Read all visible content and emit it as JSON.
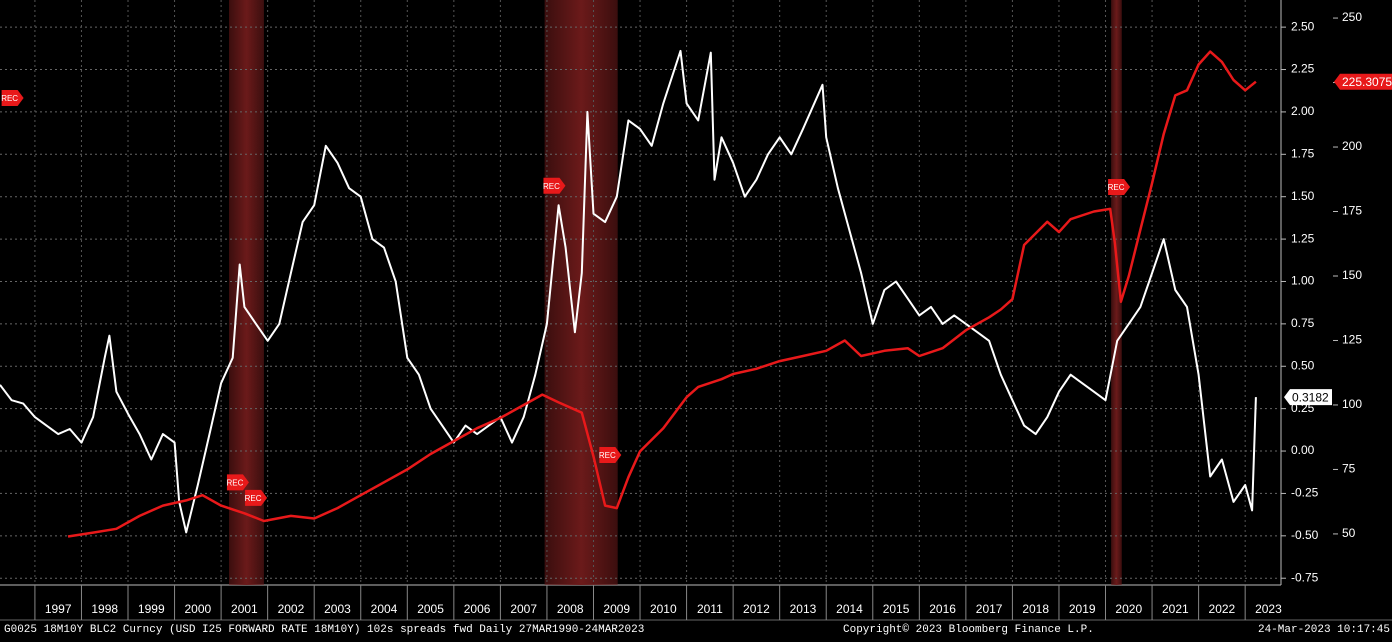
{
  "chart_data": {
    "type": "line",
    "xlim": [
      1996.25,
      2023.77
    ],
    "xticks": [
      1997,
      1998,
      1999,
      2000,
      2001,
      2002,
      2003,
      2004,
      2005,
      2006,
      2007,
      2008,
      2009,
      2010,
      2011,
      2012,
      2013,
      2014,
      2015,
      2016,
      2017,
      2018,
      2019,
      2020,
      2021,
      2022,
      2023
    ],
    "ylim": [
      -0.79,
      2.66
    ],
    "yticks": [
      {
        "value": 2.5,
        "label": "2.50"
      },
      2.25,
      {
        "value": 2,
        "label": "2.00"
      },
      1.75,
      {
        "value": 1.5,
        "label": "1.50"
      },
      1.25,
      {
        "value": 1,
        "label": "1.00"
      },
      0.75,
      {
        "value": 0.5,
        "label": "0.50"
      },
      0.25,
      {
        "value": 0,
        "label": "0.00"
      },
      -0.25,
      {
        "value": -0.5,
        "label": "-0.50"
      },
      -0.75
    ],
    "y2lim": [
      30.2,
      257
    ],
    "y2ticks": [
      50,
      75,
      100,
      125,
      150,
      175,
      200,
      225,
      250
    ],
    "grid": true,
    "recession_color": "#6b1a1a",
    "recessions": [
      [
        2001.17,
        2001.92
      ],
      [
        2007.95,
        2009.52
      ],
      [
        2020.12,
        2020.35
      ]
    ],
    "annotations": [
      {
        "text": "REC",
        "x": 1996.5,
        "y": 219
      },
      {
        "text": "REC",
        "x": 2001.34,
        "y": 70
      },
      {
        "text": "REC",
        "x": 2001.73,
        "y": 64
      },
      {
        "text": "REC",
        "x": 2008.14,
        "y": 185
      },
      {
        "text": "REC",
        "x": 2009.34,
        "y": 80.6
      },
      {
        "text": "REC",
        "x": 2020.27,
        "y": 184.5
      }
    ],
    "series": [
      {
        "color": "#ffffff",
        "axis": "y",
        "x": [
          1996.25,
          1996.5,
          1996.75,
          1997,
          1997.25,
          1997.5,
          1997.75,
          1998,
          1998.25,
          1998.5,
          1998.6,
          1998.75,
          1999,
          1999.25,
          1999.5,
          1999.75,
          2000,
          2000.1,
          2000.25,
          2000.5,
          2000.75,
          2001,
          2001.25,
          2001.4,
          2001.5,
          2001.75,
          2002,
          2002.25,
          2002.5,
          2002.75,
          2003,
          2003.25,
          2003.5,
          2003.75,
          2004,
          2004.25,
          2004.5,
          2004.75,
          2005,
          2005.25,
          2005.5,
          2005.75,
          2006,
          2006.25,
          2006.5,
          2006.75,
          2007,
          2007.25,
          2007.5,
          2007.75,
          2008,
          2008.25,
          2008.4,
          2008.5,
          2008.6,
          2008.75,
          2008.87,
          2009,
          2009.25,
          2009.5,
          2009.75,
          2010,
          2010.25,
          2010.5,
          2010.87,
          2011,
          2011.25,
          2011.52,
          2011.6,
          2011.75,
          2012,
          2012.25,
          2012.5,
          2012.75,
          2013,
          2013.25,
          2013.5,
          2013.92,
          2014,
          2014.25,
          2014.5,
          2014.75,
          2015,
          2015.25,
          2015.5,
          2015.75,
          2016,
          2016.25,
          2016.5,
          2016.75,
          2017,
          2017.25,
          2017.5,
          2017.75,
          2018,
          2018.25,
          2018.5,
          2018.75,
          2019,
          2019.25,
          2019.5,
          2019.75,
          2020,
          2020.25,
          2020.5,
          2020.75,
          2021,
          2021.25,
          2021.5,
          2021.75,
          2022,
          2022.25,
          2022.5,
          2022.75,
          2023,
          2023.15,
          2023.23
        ],
        "values": [
          0.39,
          0.3,
          0.28,
          0.2,
          0.15,
          0.1,
          0.13,
          0.05,
          0.2,
          0.55,
          0.68,
          0.35,
          0.22,
          0.1,
          -0.05,
          0.1,
          0.05,
          -0.3,
          -0.48,
          -0.2,
          0.1,
          0.4,
          0.55,
          1.1,
          0.85,
          0.75,
          0.65,
          0.75,
          1.05,
          1.35,
          1.45,
          1.8,
          1.7,
          1.55,
          1.5,
          1.25,
          1.2,
          1.0,
          0.55,
          0.45,
          0.25,
          0.15,
          0.05,
          0.15,
          0.1,
          0.15,
          0.2,
          0.05,
          0.2,
          0.45,
          0.75,
          1.45,
          1.2,
          0.95,
          0.7,
          1.05,
          2.0,
          1.4,
          1.35,
          1.5,
          1.95,
          1.9,
          1.8,
          2.05,
          2.36,
          2.05,
          1.95,
          2.35,
          1.6,
          1.85,
          1.7,
          1.5,
          1.6,
          1.75,
          1.85,
          1.75,
          1.9,
          2.16,
          1.85,
          1.55,
          1.3,
          1.05,
          0.75,
          0.95,
          1.0,
          0.9,
          0.8,
          0.85,
          0.75,
          0.8,
          0.75,
          0.7,
          0.65,
          0.45,
          0.3,
          0.15,
          0.1,
          0.2,
          0.35,
          0.45,
          0.4,
          0.35,
          0.3,
          0.65,
          0.75,
          0.85,
          1.05,
          1.25,
          0.95,
          0.85,
          0.45,
          -0.15,
          -0.05,
          -0.3,
          -0.2,
          -0.35,
          0.3182
        ]
      },
      {
        "color": "#e8191a",
        "axis": "y2",
        "x": [
          1997.71,
          1998.25,
          1998.75,
          1999.25,
          1999.75,
          2000.25,
          2000.6,
          2001,
          2001.5,
          2001.92,
          2002.5,
          2003,
          2003.5,
          2004,
          2004.5,
          2005,
          2005.5,
          2006,
          2006.5,
          2007,
          2007.5,
          2007.9,
          2008.25,
          2008.75,
          2009,
          2009.25,
          2009.5,
          2009.75,
          2010,
          2010.5,
          2011,
          2011.25,
          2011.75,
          2012,
          2012.5,
          2013,
          2013.5,
          2014,
          2014.4,
          2014.75,
          2015.25,
          2015.75,
          2016,
          2016.5,
          2017,
          2017.5,
          2017.75,
          2018,
          2018.25,
          2018.75,
          2019,
          2019.25,
          2019.75,
          2020.1,
          2020.2,
          2020.33,
          2020.5,
          2020.75,
          2021,
          2021.25,
          2021.5,
          2021.75,
          2022,
          2022.25,
          2022.5,
          2022.75,
          2023,
          2023.23
        ],
        "values": [
          49,
          50.5,
          52,
          57,
          61,
          63,
          65,
          61,
          58,
          55,
          57,
          56,
          60,
          65,
          70,
          75,
          81,
          86,
          91,
          95,
          100,
          104,
          101,
          97,
          80,
          61,
          60,
          72,
          82,
          91,
          103,
          107,
          110,
          112,
          114,
          117,
          119,
          121,
          125,
          119,
          121,
          122,
          119,
          122,
          129,
          134,
          137,
          141,
          162,
          171,
          167,
          172,
          175,
          176,
          163,
          140,
          150,
          168,
          186,
          205,
          220,
          222,
          232,
          237,
          233,
          226,
          222,
          225.3075
        ]
      }
    ]
  },
  "footer": {
    "source": "G0025 18M10Y BLC2 Curncy (USD I25 FORWARD RATE 18M10Y) 102s spreads fwd  Daily 27MAR1990-24MAR2023",
    "copyright": "Copyright© 2023 Bloomberg Finance L.P.",
    "timestamp": "24-Mar-2023 10:17:45"
  }
}
